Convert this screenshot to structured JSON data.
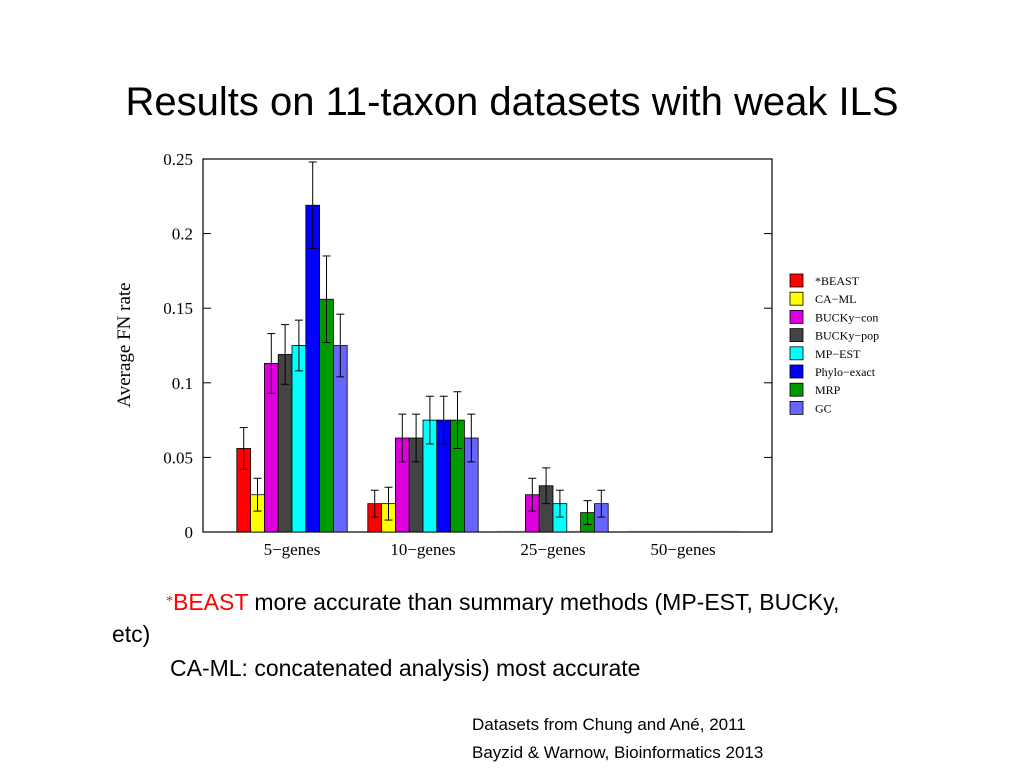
{
  "slide": {
    "title": "Results on 11-taxon datasets with weak ILS",
    "bullet_star": "*",
    "bullet_beast": "BEAST",
    "bullet_line1_rest": " more accurate than summary methods (MP-EST, BUCKy,",
    "bullet_line2": "etc)",
    "bullet_line3": "CA-ML: concatenated analysis) most accurate",
    "credit_line1": "Datasets from Chung and Ané, 2011",
    "credit_line2": "Bayzid & Warnow, Bioinformatics 2013"
  },
  "chart_data": {
    "type": "bar",
    "title": "",
    "xlabel": "",
    "ylabel": "Average FN rate",
    "ylim": [
      0,
      0.25
    ],
    "yticks": [
      "0",
      "0.05",
      "0.1",
      "0.15",
      "0.2",
      "0.25"
    ],
    "ytick_values": [
      0,
      0.05,
      0.1,
      0.15,
      0.2,
      0.25
    ],
    "categories": [
      "5−genes",
      "10−genes",
      "25−genes",
      "50−genes"
    ],
    "legend_position": "right",
    "series": [
      {
        "name": "*BEAST",
        "color": "#ff0000",
        "values": [
          0.056,
          0.019,
          0.0,
          0.0
        ],
        "errors": [
          0.014,
          0.009,
          0.0,
          0.0
        ]
      },
      {
        "name": "CA−ML",
        "color": "#ffff00",
        "values": [
          0.025,
          0.019,
          0.0,
          0.0
        ],
        "errors": [
          0.011,
          0.011,
          0.0,
          0.0
        ]
      },
      {
        "name": "BUCKy−con",
        "color": "#dd00dd",
        "values": [
          0.113,
          0.063,
          0.025,
          0.0
        ],
        "errors": [
          0.02,
          0.016,
          0.011,
          0.0
        ]
      },
      {
        "name": "BUCKy−pop",
        "color": "#444444",
        "values": [
          0.119,
          0.063,
          0.031,
          0.0
        ],
        "errors": [
          0.02,
          0.016,
          0.012,
          0.0
        ]
      },
      {
        "name": "MP−EST",
        "color": "#00ffff",
        "values": [
          0.125,
          0.075,
          0.019,
          0.0
        ],
        "errors": [
          0.017,
          0.016,
          0.009,
          0.0
        ]
      },
      {
        "name": "Phylo−exact",
        "color": "#0000ff",
        "values": [
          0.219,
          0.075,
          0.0,
          0.0
        ],
        "errors": [
          0.029,
          0.016,
          0.0,
          0.0
        ]
      },
      {
        "name": "MRP",
        "color": "#009900",
        "values": [
          0.156,
          0.075,
          0.013,
          0.0
        ],
        "errors": [
          0.029,
          0.019,
          0.008,
          0.0
        ]
      },
      {
        "name": "GC",
        "color": "#6666ff",
        "values": [
          0.125,
          0.063,
          0.019,
          0.0
        ],
        "errors": [
          0.021,
          0.016,
          0.009,
          0.0
        ]
      }
    ]
  }
}
